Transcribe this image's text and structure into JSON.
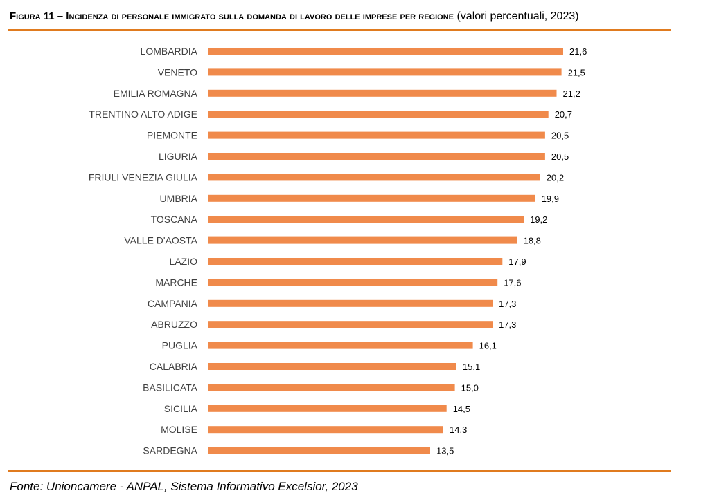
{
  "figure": {
    "label": "Figura 11 – Incidenza di personale immigrato sulla domanda di lavoro delle imprese per regione",
    "subtitle": "(valori percentuali, 2023)"
  },
  "source": "Fonte: Unioncamere - ANPAL, Sistema Informativo Excelsior, 2023",
  "colors": {
    "bar": "#f08a4b",
    "rule": "#e07b1f"
  },
  "chart_data": {
    "type": "bar",
    "orientation": "horizontal",
    "title": "Figura 11 – Incidenza di personale immigrato sulla domanda di lavoro delle imprese per regione",
    "subtitle": "(valori percentuali, 2023)",
    "categories": [
      "LOMBARDIA",
      "VENETO",
      "EMILIA ROMAGNA",
      "TRENTINO ALTO ADIGE",
      "PIEMONTE",
      "LIGURIA",
      "FRIULI VENEZIA GIULIA",
      "UMBRIA",
      "TOSCANA",
      "VALLE D'AOSTA",
      "LAZIO",
      "MARCHE",
      "CAMPANIA",
      "ABRUZZO",
      "PUGLIA",
      "CALABRIA",
      "BASILICATA",
      "SICILIA",
      "MOLISE",
      "SARDEGNA"
    ],
    "values": [
      21.6,
      21.5,
      21.2,
      20.7,
      20.5,
      20.5,
      20.2,
      19.9,
      19.2,
      18.8,
      17.9,
      17.6,
      17.3,
      17.3,
      16.1,
      15.1,
      15.0,
      14.5,
      14.3,
      13.5
    ],
    "value_labels": [
      "21,6",
      "21,5",
      "21,2",
      "20,7",
      "20,5",
      "20,5",
      "20,2",
      "19,9",
      "19,2",
      "18,8",
      "17,9",
      "17,6",
      "17,3",
      "17,3",
      "16,1",
      "15,1",
      "15,0",
      "14,5",
      "14,3",
      "13,5"
    ],
    "xlabel": "",
    "ylabel": "",
    "xlim": [
      0,
      21.6
    ],
    "grid": false,
    "legend": "none"
  }
}
